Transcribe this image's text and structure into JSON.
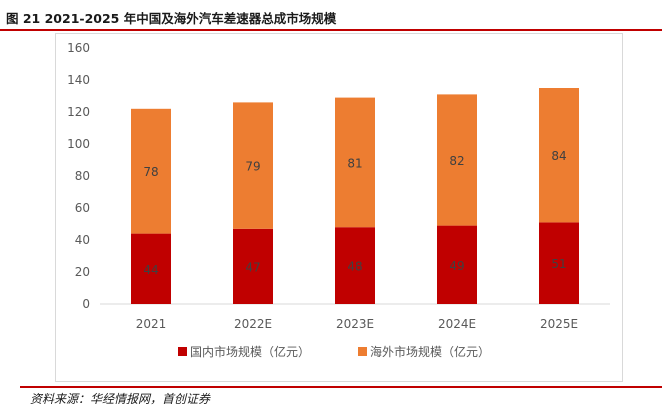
{
  "figure_title": "图 21 2021-2025 年中国及海外汽车差速器总成市场规模",
  "source": "资料来源：华经情报网，首创证券",
  "colors": {
    "rule": "#c00000",
    "domestic": "#c00000",
    "overseas": "#ed7d31"
  },
  "chart_data": {
    "type": "bar",
    "stacked": true,
    "categories": [
      "2021",
      "2022E",
      "2023E",
      "2024E",
      "2025E"
    ],
    "series": [
      {
        "name": "国内市场规模（亿元）",
        "values": [
          44,
          47,
          48,
          49,
          51
        ],
        "color": "#c00000"
      },
      {
        "name": "海外市场规模（亿元）",
        "values": [
          78,
          79,
          81,
          82,
          84
        ],
        "color": "#ed7d31"
      }
    ],
    "ylim": [
      0,
      160
    ],
    "yticks": [
      0,
      20,
      40,
      60,
      80,
      100,
      120,
      140,
      160
    ],
    "grid": false,
    "legend": "bottom",
    "data_labels": true
  }
}
